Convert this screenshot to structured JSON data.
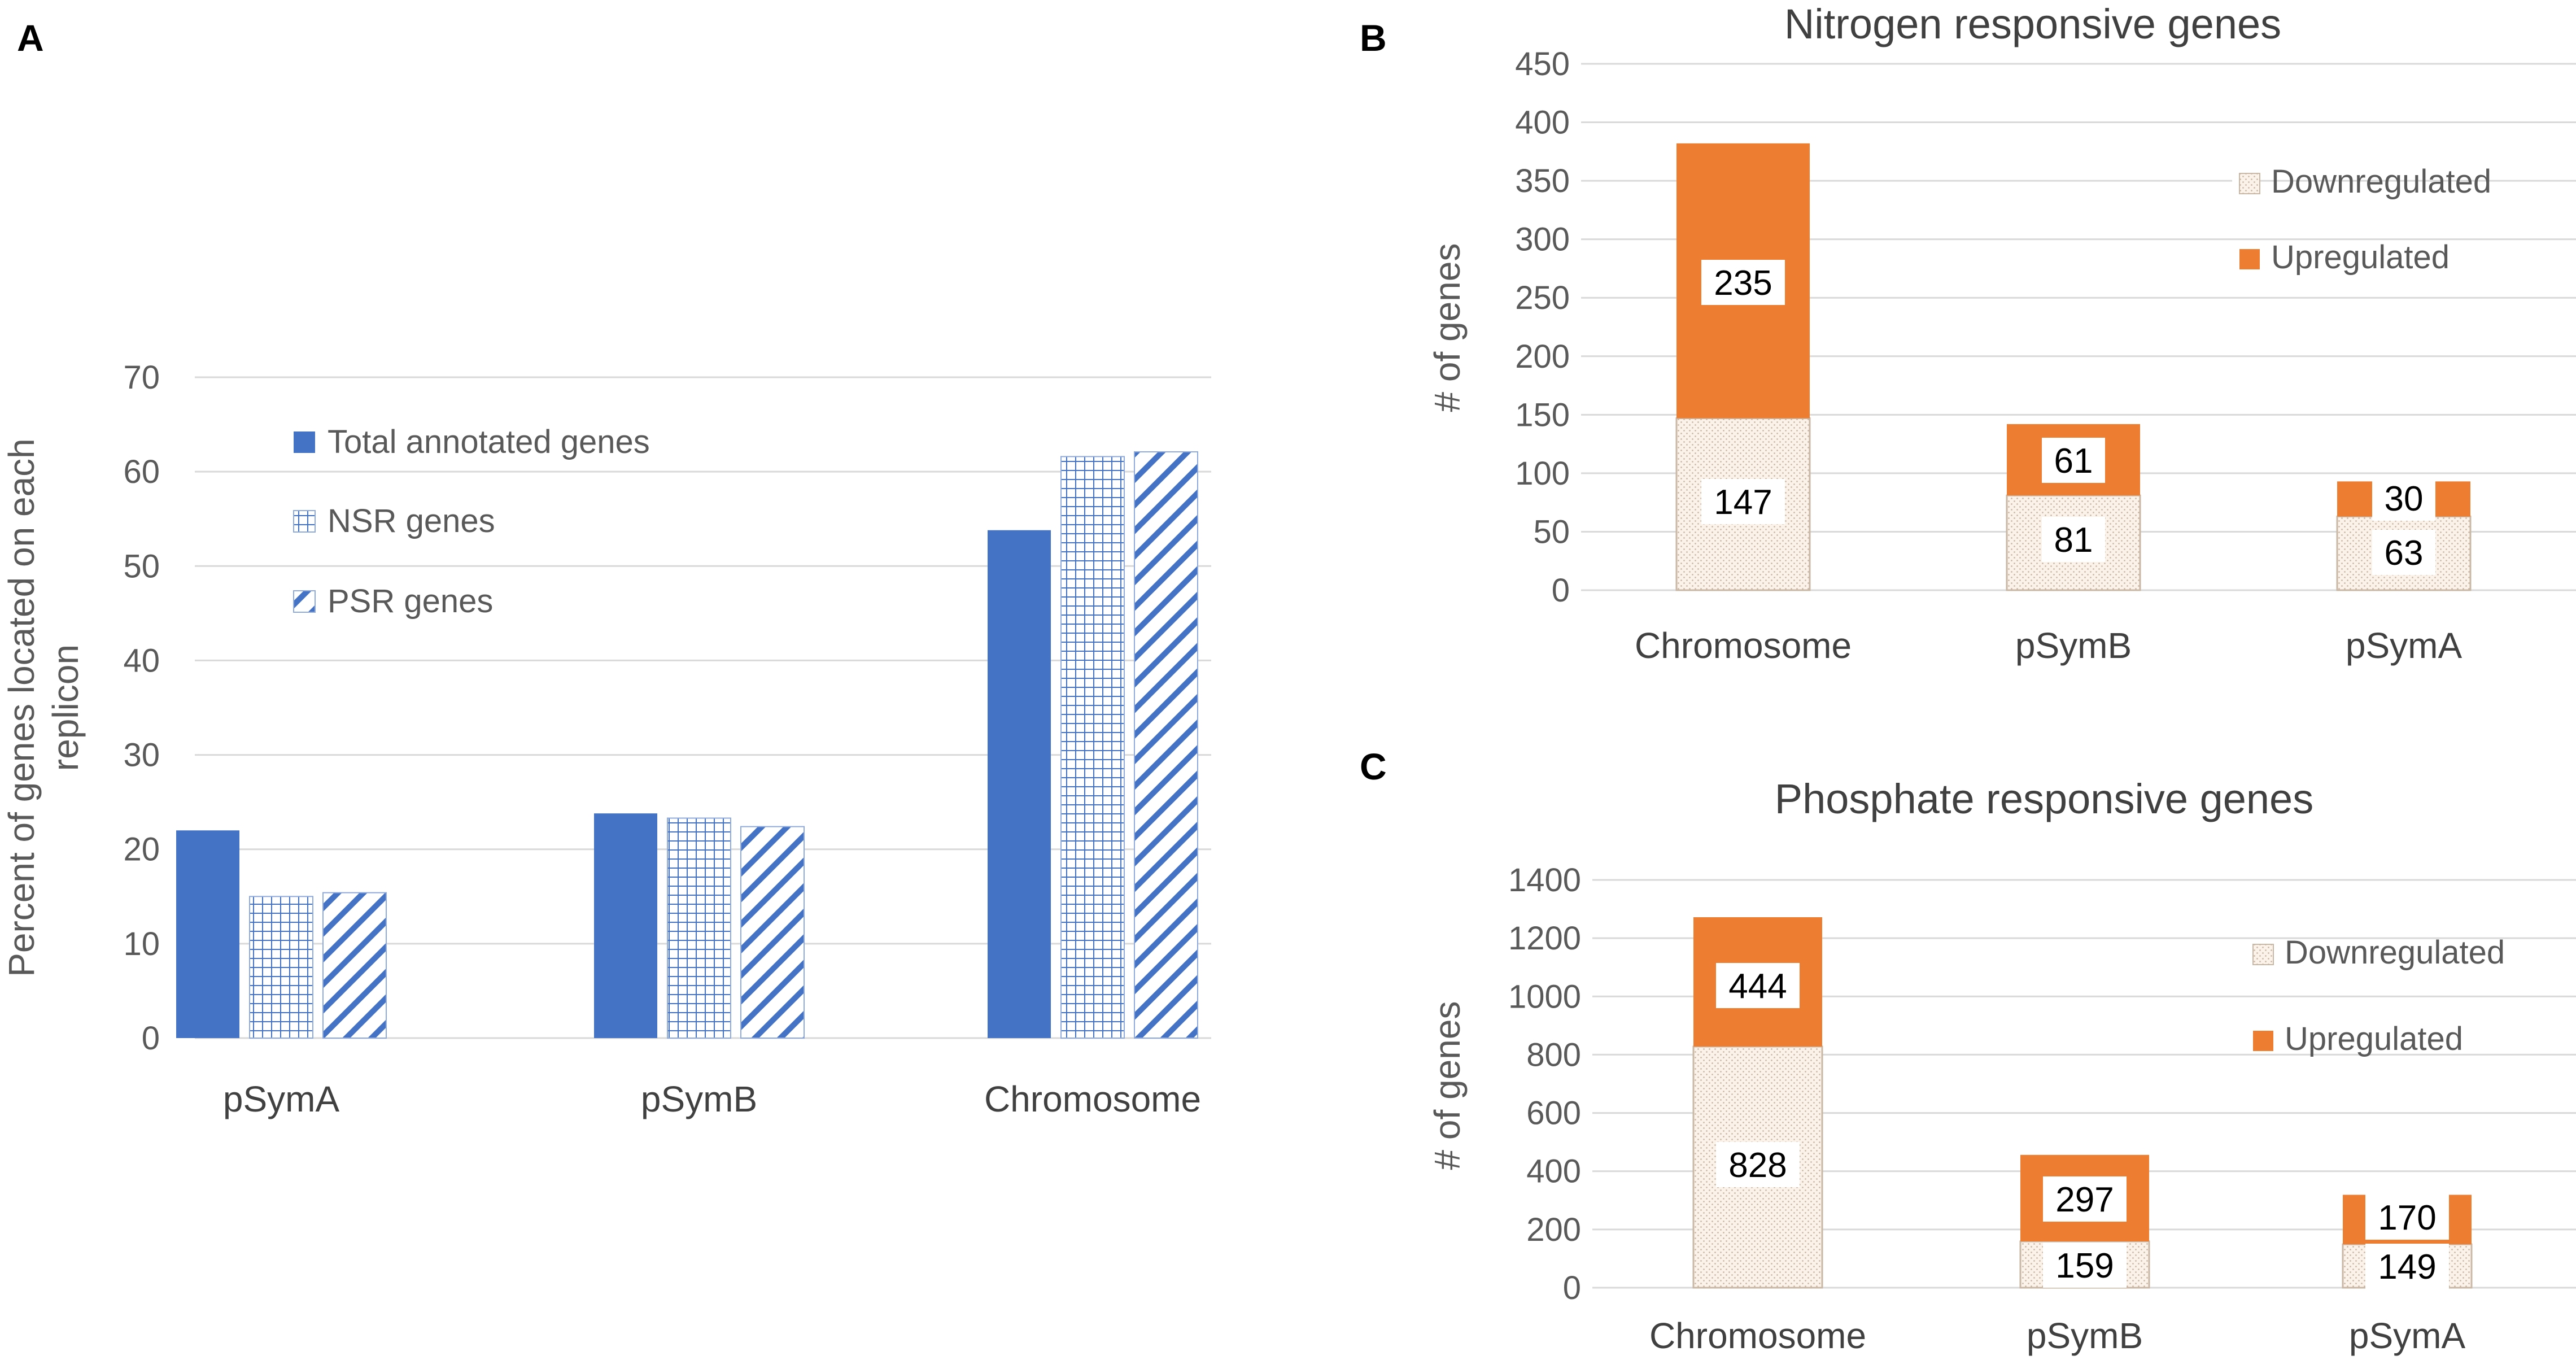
{
  "panels": {
    "A": "A",
    "B": "B",
    "C": "C"
  },
  "colors": {
    "total_blue": "#4472C4",
    "pattern_blue": "#4472C4",
    "upregulated": "#ED7D31",
    "downregulated_bg": "#fbf2ea",
    "downregulated_dot": "#c9b8a6",
    "grid": "#d9d9d9"
  },
  "chart_data": [
    {
      "id": "A",
      "type": "bar",
      "title": "",
      "ylabel": "Percent of genes located on each replicon",
      "ylabel_lines": [
        "Percent of genes located on each",
        "replicon"
      ],
      "xlabel": "",
      "ylim": [
        0,
        70
      ],
      "yticks": [
        0,
        10,
        20,
        30,
        40,
        50,
        60,
        70
      ],
      "categories": [
        "pSymA",
        "pSymB",
        "Chromosome"
      ],
      "legend_position": "top-left",
      "series": [
        {
          "name": "Total annotated genes",
          "pattern": "solid",
          "values": [
            22,
            23.8,
            53.8
          ]
        },
        {
          "name": "NSR genes",
          "pattern": "grid",
          "values": [
            15,
            23.3,
            61.6
          ]
        },
        {
          "name": "PSR genes",
          "pattern": "diagonal",
          "values": [
            15.4,
            22.4,
            62.1
          ]
        }
      ]
    },
    {
      "id": "B",
      "type": "bar",
      "stacked": true,
      "title": "Nitrogen responsive genes",
      "ylabel": "# of genes",
      "xlabel": "",
      "ylim": [
        0,
        450
      ],
      "yticks": [
        0,
        50,
        100,
        150,
        200,
        250,
        300,
        350,
        400,
        450
      ],
      "categories": [
        "Chromosome",
        "pSymB",
        "pSymA"
      ],
      "legend_position": "top-right",
      "series": [
        {
          "name": "Downregulated",
          "values": [
            147,
            81,
            63
          ]
        },
        {
          "name": "Upregulated",
          "values": [
            235,
            61,
            30
          ]
        }
      ]
    },
    {
      "id": "C",
      "type": "bar",
      "stacked": true,
      "title": "Phosphate responsive genes",
      "ylabel": "# of genes",
      "xlabel": "",
      "ylim": [
        0,
        1400
      ],
      "yticks": [
        0,
        200,
        400,
        600,
        800,
        1000,
        1200,
        1400
      ],
      "categories": [
        "Chromosome",
        "pSymB",
        "pSymA"
      ],
      "legend_position": "top-right",
      "series": [
        {
          "name": "Downregulated",
          "values": [
            828,
            159,
            149
          ]
        },
        {
          "name": "Upregulated",
          "values": [
            444,
            297,
            170
          ]
        }
      ]
    }
  ]
}
